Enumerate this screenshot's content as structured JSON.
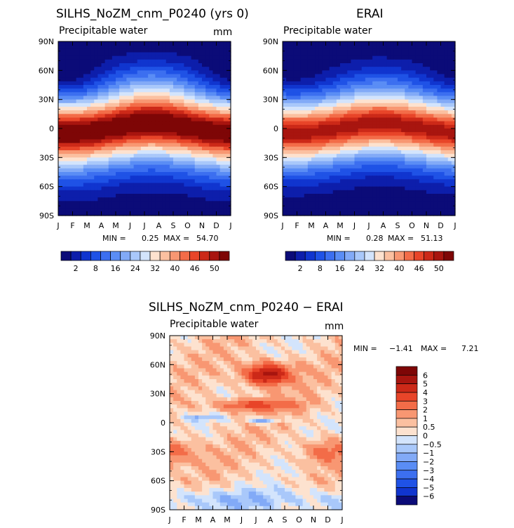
{
  "chart_data": [
    {
      "type": "heatmap",
      "title": "SILHS_NoZM_cnm_P0240 (yrs 0)",
      "subtitle": "Precipitable water",
      "units": "mm",
      "x_ticks": [
        "J",
        "F",
        "M",
        "A",
        "M",
        "J",
        "J",
        "A",
        "S",
        "O",
        "N",
        "D",
        "J"
      ],
      "y_ticks": [
        "90N",
        "60N",
        "30N",
        "0",
        "30S",
        "60S",
        "90S"
      ],
      "stats": {
        "min_label": "MIN =",
        "min": "0.25",
        "max_label": "MAX =",
        "max": "54.70"
      },
      "peak": 54.7,
      "peak_month": 6.5,
      "sigma": 13,
      "ncolor": 0.6,
      "hotspot": 0,
      "colorbar_labels": [
        "2",
        "8",
        "16",
        "24",
        "32",
        "40",
        "46",
        "50"
      ]
    },
    {
      "type": "heatmap",
      "title": "ERAI",
      "subtitle": "Precipitable water",
      "units": "",
      "x_ticks": [
        "J",
        "F",
        "M",
        "A",
        "M",
        "J",
        "J",
        "A",
        "S",
        "O",
        "N",
        "D",
        "J"
      ],
      "y_ticks": [
        "90N",
        "60N",
        "30N",
        "0",
        "30S",
        "60S",
        "90S"
      ],
      "stats": {
        "min_label": "MIN =",
        "min": "0.28",
        "max_label": "MAX =",
        "max": "51.13"
      },
      "peak": 51.1,
      "peak_month": 6.8,
      "sigma": 12,
      "ncolor": 0.3,
      "hotspot": 0,
      "colorbar_labels": [
        "2",
        "8",
        "16",
        "24",
        "32",
        "40",
        "46",
        "50"
      ]
    },
    {
      "type": "heatmap",
      "title": "SILHS_NoZM_cnm_P0240 − ERAI",
      "subtitle": "Precipitable water",
      "units": "mm",
      "x_ticks": [
        "J",
        "F",
        "M",
        "A",
        "M",
        "J",
        "J",
        "A",
        "S",
        "O",
        "N",
        "D",
        "J"
      ],
      "y_ticks": [
        "90N",
        "60N",
        "30N",
        "0",
        "30S",
        "60S",
        "90S"
      ],
      "stats": {
        "min_label": "MIN =",
        "min": "−1.41",
        "max_label": "MAX =",
        "max": "7.21"
      },
      "colorbar_labels": [
        "6",
        "5",
        "4",
        "3",
        "2",
        "1",
        "0.5",
        "0",
        "−0.5",
        "−1",
        "−2",
        "−3",
        "−4",
        "−5",
        "−6"
      ]
    }
  ],
  "colors": {
    "abs_scale": [
      "#0b0b78",
      "#0d1eab",
      "#1035cf",
      "#1f52e6",
      "#3c6ff0",
      "#5a8df5",
      "#82aaf7",
      "#a9c8fa",
      "#d3e4fc",
      "#fde2cf",
      "#fbc0a0",
      "#f89772",
      "#f36c48",
      "#e84529",
      "#cc2918",
      "#a8150f",
      "#7e0606"
    ],
    "diff_scale": [
      "#7e0606",
      "#a8150f",
      "#cc2918",
      "#e84529",
      "#f36c48",
      "#f89772",
      "#fbc0a0",
      "#fde2cf",
      "#d3e4fc",
      "#a9c8fa",
      "#82aaf7",
      "#5a8df5",
      "#3c6ff0",
      "#1f52e6",
      "#1035cf",
      "#0b0b78"
    ]
  }
}
